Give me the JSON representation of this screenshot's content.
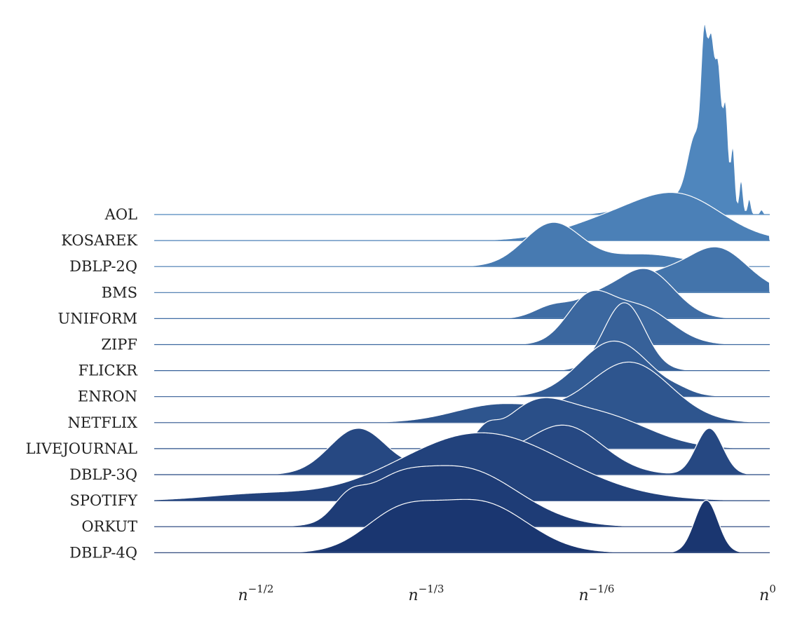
{
  "chart_data": {
    "type": "ridgeline",
    "title": "",
    "xlabel": "",
    "ylabel": "",
    "xscale": "log",
    "xlim_exponent": [
      -0.5,
      0
    ],
    "x_ticks": [
      {
        "base": "n",
        "exp": "−1/2",
        "value": -0.5
      },
      {
        "base": "n",
        "exp": "−1/3",
        "value": -0.3333
      },
      {
        "base": "n",
        "exp": "−1/6",
        "value": -0.1667
      },
      {
        "base": "n",
        "exp": "0",
        "value": 0
      }
    ],
    "color_range": [
      "#4f86bd",
      "#1a3670"
    ],
    "series": [
      {
        "name": "AOL",
        "peaks": [
          {
            "mu": -0.1,
            "sigma": 0.03,
            "amp": 0.12
          },
          {
            "mu": -0.062,
            "sigma": 0.003,
            "amp": 0.82
          },
          {
            "mu": -0.055,
            "sigma": 0.0032,
            "amp": 0.95
          },
          {
            "mu": -0.048,
            "sigma": 0.003,
            "amp": 0.85
          },
          {
            "mu": -0.041,
            "sigma": 0.0025,
            "amp": 0.65
          },
          {
            "mu": -0.034,
            "sigma": 0.002,
            "amp": 0.42
          },
          {
            "mu": -0.026,
            "sigma": 0.0018,
            "amp": 0.22
          },
          {
            "mu": -0.018,
            "sigma": 0.0016,
            "amp": 0.1
          },
          {
            "mu": -0.07,
            "sigma": 0.008,
            "amp": 0.45
          },
          {
            "mu": -0.006,
            "sigma": 0.0015,
            "amp": 0.03
          }
        ]
      },
      {
        "name": "KOSAREK",
        "peaks": [
          {
            "mu": -0.085,
            "sigma": 0.042,
            "amp": 0.27
          },
          {
            "mu": -0.155,
            "sigma": 0.045,
            "amp": 0.12
          }
        ]
      },
      {
        "name": "DBLP-2Q",
        "peaks": [
          {
            "mu": -0.21,
            "sigma": 0.028,
            "amp": 0.28
          },
          {
            "mu": -0.12,
            "sigma": 0.04,
            "amp": 0.08
          }
        ]
      },
      {
        "name": "BMS",
        "peaks": [
          {
            "mu": -0.05,
            "sigma": 0.03,
            "amp": 0.29
          },
          {
            "mu": -0.11,
            "sigma": 0.025,
            "amp": 0.1
          }
        ]
      },
      {
        "name": "UNIFORM",
        "peaks": [
          {
            "mu": -0.12,
            "sigma": 0.028,
            "amp": 0.32
          },
          {
            "mu": -0.17,
            "sigma": 0.02,
            "amp": 0.1
          },
          {
            "mu": -0.21,
            "sigma": 0.018,
            "amp": 0.08
          }
        ]
      },
      {
        "name": "ZIPF",
        "peaks": [
          {
            "mu": -0.175,
            "sigma": 0.022,
            "amp": 0.28
          },
          {
            "mu": -0.125,
            "sigma": 0.03,
            "amp": 0.24
          }
        ]
      },
      {
        "name": "FLICKR",
        "peaks": [
          {
            "mu": -0.14,
            "sigma": 0.02,
            "amp": 0.44
          }
        ]
      },
      {
        "name": "ENRON",
        "peaks": [
          {
            "mu": -0.15,
            "sigma": 0.034,
            "amp": 0.36
          },
          {
            "mu": -0.085,
            "sigma": 0.012,
            "amp": 0.015
          }
        ]
      },
      {
        "name": "NETFLIX",
        "peaks": [
          {
            "mu": -0.135,
            "sigma": 0.04,
            "amp": 0.39
          },
          {
            "mu": -0.26,
            "sigma": 0.045,
            "amp": 0.12
          }
        ]
      },
      {
        "name": "LIVEJOURNAL",
        "peaks": [
          {
            "mu": -0.17,
            "sigma": 0.05,
            "amp": 0.23
          },
          {
            "mu": -0.23,
            "sigma": 0.03,
            "amp": 0.2
          },
          {
            "mu": -0.275,
            "sigma": 0.01,
            "amp": 0.08
          }
        ]
      },
      {
        "name": "DBLP-3Q",
        "peaks": [
          {
            "mu": -0.4,
            "sigma": 0.028,
            "amp": 0.3
          },
          {
            "mu": -0.295,
            "sigma": 0.03,
            "amp": 0.16
          },
          {
            "mu": -0.2,
            "sigma": 0.038,
            "amp": 0.32
          },
          {
            "mu": -0.057,
            "sigma": 0.013,
            "amp": 0.3
          }
        ]
      },
      {
        "name": "SPOTIFY",
        "peaks": [
          {
            "mu": -0.28,
            "sigma": 0.08,
            "amp": 0.44
          },
          {
            "mu": -0.5,
            "sigma": 0.05,
            "amp": 0.04
          }
        ]
      },
      {
        "name": "ORKUT",
        "peaks": [
          {
            "mu": -0.3,
            "sigma": 0.055,
            "amp": 0.38
          },
          {
            "mu": -0.41,
            "sigma": 0.015,
            "amp": 0.12
          },
          {
            "mu": -0.37,
            "sigma": 0.03,
            "amp": 0.16
          }
        ]
      },
      {
        "name": "DBLP-4Q",
        "peaks": [
          {
            "mu": -0.36,
            "sigma": 0.035,
            "amp": 0.24
          },
          {
            "mu": -0.28,
            "sigma": 0.045,
            "amp": 0.32
          },
          {
            "mu": -0.06,
            "sigma": 0.0115,
            "amp": 0.34
          }
        ]
      }
    ]
  }
}
